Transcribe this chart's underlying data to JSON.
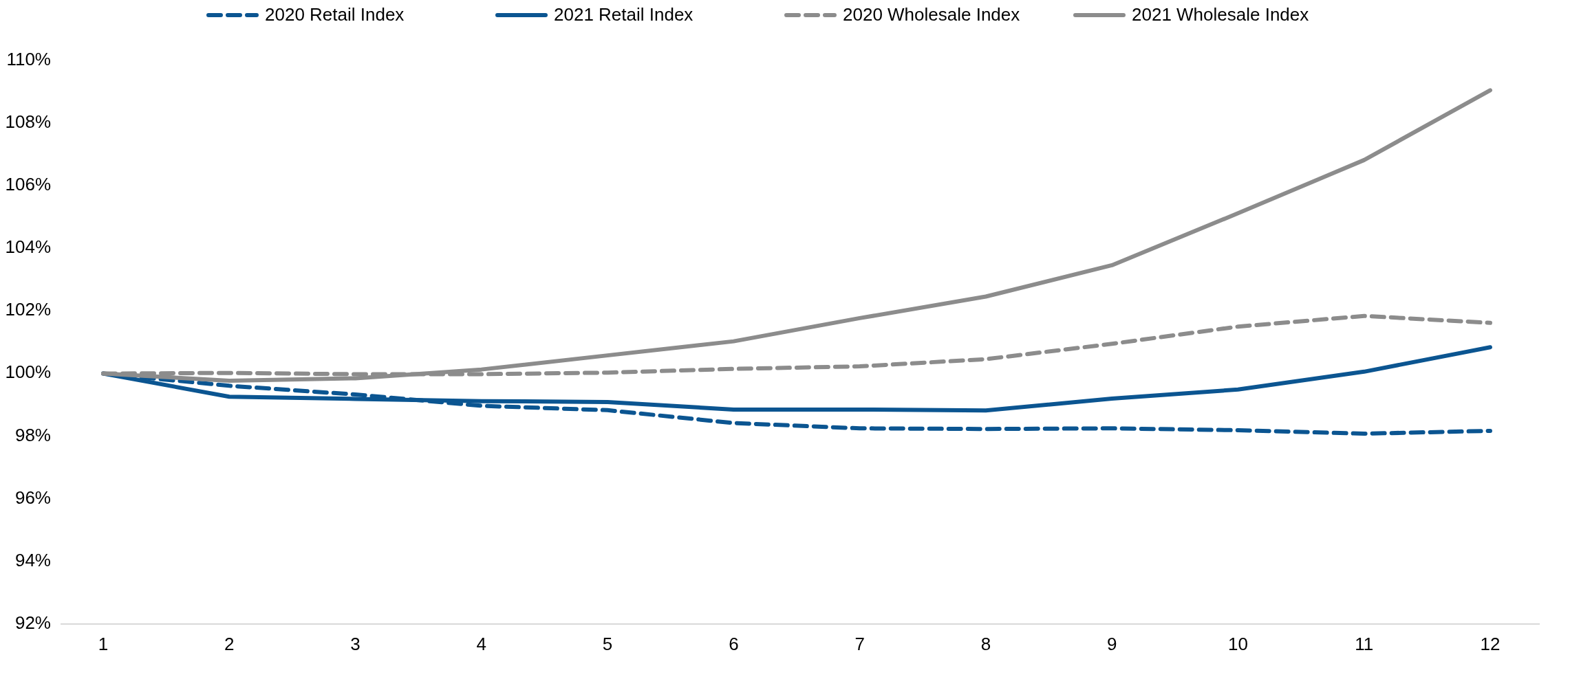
{
  "chart_data": {
    "type": "line",
    "categories": [
      "1",
      "2",
      "3",
      "4",
      "5",
      "6",
      "7",
      "8",
      "9",
      "10",
      "11",
      "12"
    ],
    "series": [
      {
        "name": "2020 Retail Index",
        "color": "#0b5591",
        "line_style": "dashed",
        "values": [
          100,
          99.61,
          99.33,
          98.97,
          98.83,
          98.42,
          98.25,
          98.23,
          98.25,
          98.19,
          98.08,
          98.17
        ]
      },
      {
        "name": "2021 Retail Index",
        "color": "#0b5591",
        "line_style": "solid",
        "values": [
          100,
          99.26,
          99.19,
          99.12,
          99.09,
          98.85,
          98.85,
          98.82,
          99.2,
          99.49,
          100.06,
          100.84
        ]
      },
      {
        "name": "2020 Wholesale Index",
        "color": "#8c8c8c",
        "line_style": "dashed",
        "values": [
          100,
          100.02,
          99.98,
          99.98,
          100.03,
          100.15,
          100.23,
          100.46,
          100.95,
          101.5,
          101.84,
          101.62
        ]
      },
      {
        "name": "2021 Wholesale Index",
        "color": "#8c8c8c",
        "line_style": "solid",
        "values": [
          100,
          99.77,
          99.85,
          100.13,
          100.58,
          101.03,
          101.77,
          102.46,
          103.46,
          105.12,
          106.82,
          109.05
        ]
      }
    ],
    "ylim": [
      92,
      110
    ],
    "yticks": [
      {
        "value": 92,
        "label": "92%"
      },
      {
        "value": 94,
        "label": "94%"
      },
      {
        "value": 96,
        "label": "96%"
      },
      {
        "value": 98,
        "label": "98%"
      },
      {
        "value": 100,
        "label": "100%"
      },
      {
        "value": 102,
        "label": "102%"
      },
      {
        "value": 104,
        "label": "104%"
      },
      {
        "value": 106,
        "label": "106%"
      },
      {
        "value": 108,
        "label": "108%"
      },
      {
        "value": 110,
        "label": "110%"
      }
    ],
    "legend": "top",
    "marker": "none"
  }
}
